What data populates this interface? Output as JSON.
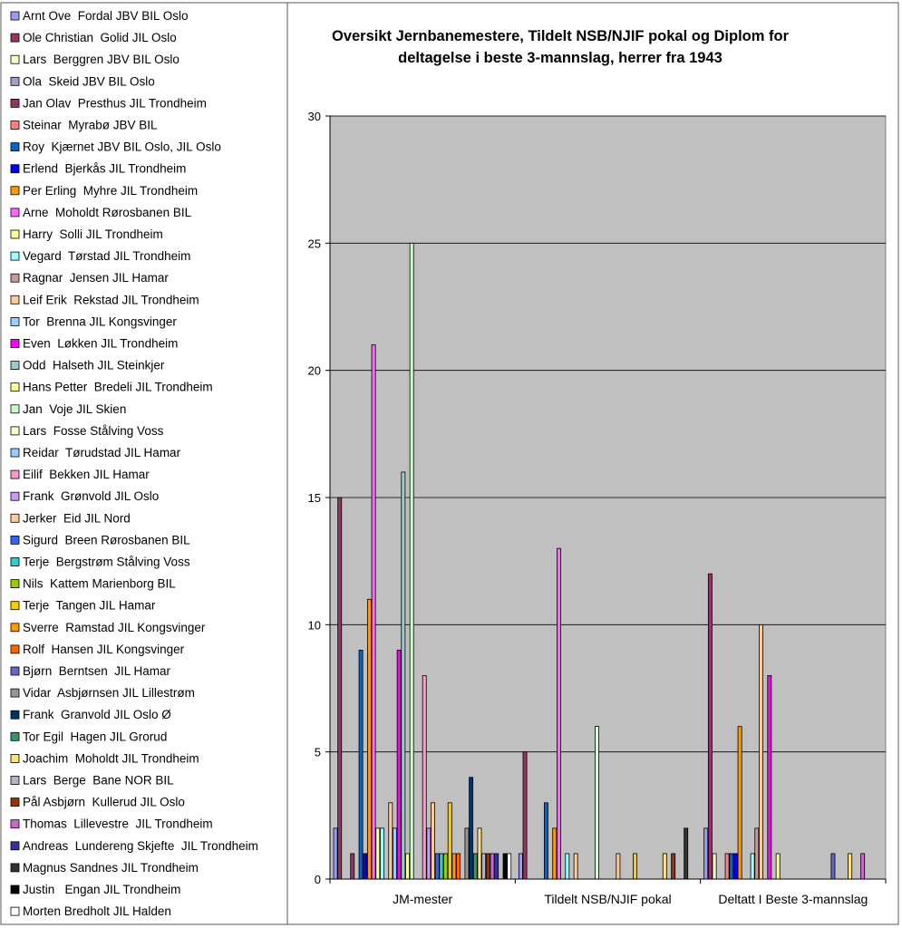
{
  "chart_data": {
    "type": "bar",
    "title": "Oversikt Jernbanemestere, Tildelt NSB/NJIF pokal og Diplom for deltagelse i beste 3-mannslag, herrer fra 1943",
    "title_lines": [
      "Oversikt Jernbanemestere, Tildelt NSB/NJIF pokal og Diplom for",
      "deltagelse i beste 3-mannslag, herrer fra 1943"
    ],
    "xlabel": "",
    "ylabel": "",
    "ylim": [
      0,
      30
    ],
    "yticks": [
      0,
      5,
      10,
      15,
      20,
      25,
      30
    ],
    "grid": true,
    "plot_background": "#c0c0c0",
    "legend_position": "left",
    "categories": [
      "JM-mester",
      "Tildelt NSB/NJIF pokal",
      "Deltatt I Beste 3-mannslag"
    ],
    "series": [
      {
        "name": "Arnt Ove  Fordal JBV BIL Oslo",
        "color": "#9999ff",
        "values": [
          2,
          1,
          2
        ]
      },
      {
        "name": "Ole Christian  Golid JIL Oslo",
        "color": "#993366",
        "values": [
          15,
          5,
          12
        ]
      },
      {
        "name": "Lars  Berggren JBV BIL Oslo",
        "color": "#ffffcc",
        "values": [
          0,
          0,
          1
        ]
      },
      {
        "name": "Ola  Skeid JBV BIL Oslo",
        "color": "#a0a0c8",
        "values": [
          0,
          0,
          0
        ]
      },
      {
        "name": "Jan Olav  Presthus JIL Trondheim",
        "color": "#993366",
        "values": [
          1,
          0,
          0
        ]
      },
      {
        "name": "Steinar  Myrabø JBV BIL",
        "color": "#ff8080",
        "values": [
          0,
          0,
          1
        ]
      },
      {
        "name": "Roy  Kjærnet JBV BIL Oslo, JIL Oslo",
        "color": "#0066cc",
        "values": [
          9,
          3,
          1
        ]
      },
      {
        "name": "Erlend  Bjerkås JIL Trondheim",
        "color": "#0000ff",
        "values": [
          1,
          0,
          1
        ]
      },
      {
        "name": "Per Erling  Myhre JIL Trondheim",
        "color": "#ff9900",
        "values": [
          11,
          2,
          6
        ]
      },
      {
        "name": "Arne  Moholdt Rørosbanen BIL",
        "color": "#ff66ff",
        "values": [
          21,
          13,
          0
        ]
      },
      {
        "name": "Harry  Solli JIL Trondheim",
        "color": "#ffff99",
        "values": [
          2,
          0,
          0
        ]
      },
      {
        "name": "Vegard  Tørstad JIL Trondheim",
        "color": "#99ffff",
        "values": [
          2,
          1,
          1
        ]
      },
      {
        "name": "Ragnar  Jensen JIL Hamar",
        "color": "#cc9999",
        "values": [
          0,
          0,
          2
        ]
      },
      {
        "name": "Leif Erik  Rekstad JIL Trondheim",
        "color": "#ffcc99",
        "values": [
          3,
          1,
          10
        ]
      },
      {
        "name": "Tor  Brenna JIL Kongsvinger",
        "color": "#99ccff",
        "values": [
          2,
          0,
          0
        ]
      },
      {
        "name": "Even  Løkken JIL Trondheim",
        "color": "#ff00ff",
        "values": [
          9,
          0,
          8
        ]
      },
      {
        "name": "Odd  Halseth JIL Steinkjer",
        "color": "#99cccc",
        "values": [
          16,
          0,
          0
        ]
      },
      {
        "name": "Hans Petter  Bredeli JIL Trondheim",
        "color": "#ffff99",
        "values": [
          1,
          0,
          1
        ]
      },
      {
        "name": "Jan  Voje JIL Skien",
        "color": "#ccffcc",
        "values": [
          25,
          6,
          0
        ]
      },
      {
        "name": "Lars  Fosse Stålving Voss",
        "color": "#ffffcc",
        "values": [
          0,
          0,
          0
        ]
      },
      {
        "name": "Reidar  Tørudstad JIL Hamar",
        "color": "#99ccff",
        "values": [
          0,
          0,
          0
        ]
      },
      {
        "name": "Eilif  Bekken JIL Hamar",
        "color": "#ff99cc",
        "values": [
          8,
          0,
          0
        ]
      },
      {
        "name": "Frank  Grønvold JIL Oslo",
        "color": "#cc99ff",
        "values": [
          2,
          0,
          0
        ]
      },
      {
        "name": "Jerker  Eid JIL Nord",
        "color": "#ffcc99",
        "values": [
          3,
          1,
          0
        ]
      },
      {
        "name": "Sigurd  Breen Rørosbanen BIL",
        "color": "#3366ff",
        "values": [
          1,
          0,
          0
        ]
      },
      {
        "name": "Terje  Bergstrøm Stålving Voss",
        "color": "#33cccc",
        "values": [
          1,
          0,
          0
        ]
      },
      {
        "name": "Nils  Kattem Marienborg BIL",
        "color": "#99cc00",
        "values": [
          1,
          0,
          0
        ]
      },
      {
        "name": "Terje  Tangen JIL Hamar",
        "color": "#ffcc00",
        "values": [
          3,
          1,
          0
        ]
      },
      {
        "name": "Sverre  Ramstad JIL Kongsvinger",
        "color": "#ff9900",
        "values": [
          1,
          0,
          0
        ]
      },
      {
        "name": "Rolf  Hansen JIL Kongsvinger",
        "color": "#ff6600",
        "values": [
          1,
          0,
          0
        ]
      },
      {
        "name": "Bjørn  Berntsen  JIL Hamar",
        "color": "#6666cc",
        "values": [
          0,
          0,
          1
        ]
      },
      {
        "name": "Vidar  Asbjørnsen JIL Lillestrøm",
        "color": "#969696",
        "values": [
          2,
          0,
          0
        ]
      },
      {
        "name": "Frank  Granvold JIL Oslo Ø",
        "color": "#003366",
        "values": [
          4,
          0,
          0
        ]
      },
      {
        "name": "Tor Egil  Hagen JIL Grorud",
        "color": "#339966",
        "values": [
          1,
          0,
          0
        ]
      },
      {
        "name": "Joachim  Moholdt JIL Trondheim",
        "color": "#ffe080",
        "values": [
          2,
          1,
          1
        ]
      },
      {
        "name": "Lars  Berge  Bane NOR BIL",
        "color": "#b4b4c8",
        "values": [
          1,
          0,
          0
        ]
      },
      {
        "name": "Pål Asbjørn  Kullerud JIL Oslo",
        "color": "#993300",
        "values": [
          1,
          1,
          0
        ]
      },
      {
        "name": "Thomas  Lillevestre  JIL Trondheim",
        "color": "#cc66cc",
        "values": [
          1,
          0,
          1
        ]
      },
      {
        "name": "Andreas  Lundereng Skjefte  JIL Trondheim",
        "color": "#333399",
        "values": [
          1,
          0,
          0
        ]
      },
      {
        "name": "Magnus Sandnes JIL Trondheim",
        "color": "#333333",
        "values": [
          0,
          2,
          0
        ]
      },
      {
        "name": "Justin   Engan JIL Trondheim",
        "color": "#000000",
        "values": [
          1,
          0,
          0
        ]
      },
      {
        "name": "Morten Bredholt JIL Halden",
        "color": "#ffffff",
        "values": [
          1,
          0,
          0
        ]
      }
    ]
  }
}
